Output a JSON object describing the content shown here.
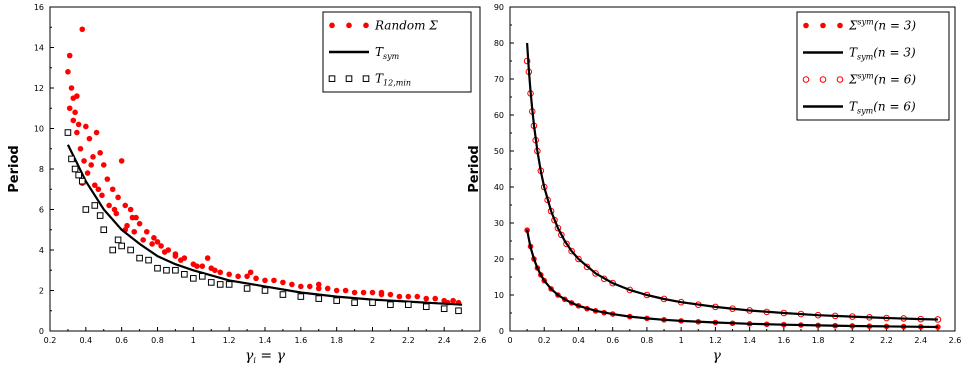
{
  "chart_data": [
    {
      "type": "scatter",
      "ylabel": "Period",
      "xlabel_text": "γ",
      "xlabel_sub": "i",
      "xlabel_tail": " = γ",
      "xlim": [
        0.2,
        2.6
      ],
      "ylim": [
        0,
        16
      ],
      "xticks": [
        "0.2",
        "0.4",
        "0.6",
        "0.8",
        "1",
        "1.2",
        "1.4",
        "1.6",
        "1.8",
        "2",
        "2.2",
        "2.4",
        "2.6"
      ],
      "yticks": [
        "0",
        "2",
        "4",
        "6",
        "8",
        "10",
        "12",
        "14",
        "16"
      ],
      "legend_position": "top-right",
      "colors": {
        "random": "#ff0000",
        "sym": "#000000",
        "t12": "#000000"
      },
      "series": [
        {
          "name": "Random Σ",
          "key": "random",
          "marker": "dot",
          "x": [
            0.3,
            0.31,
            0.32,
            0.33,
            0.34,
            0.35,
            0.36,
            0.38,
            0.4,
            0.42,
            0.44,
            0.46,
            0.48,
            0.5,
            0.52,
            0.55,
            0.58,
            0.6,
            0.62,
            0.65,
            0.68,
            0.7,
            0.74,
            0.78,
            0.82,
            0.86,
            0.9,
            0.95,
            1.0,
            1.05,
            1.1,
            1.15,
            1.2,
            1.3,
            1.4,
            1.5,
            1.6,
            1.7,
            1.8,
            1.9,
            2.0,
            2.1,
            2.2,
            2.3,
            2.4,
            2.48,
            0.31,
            0.33,
            0.35,
            0.37,
            0.39,
            0.41,
            0.45,
            0.49,
            0.53,
            0.57,
            0.63,
            0.67,
            0.72,
            0.77,
            0.84,
            0.93,
            1.02,
            1.12,
            1.25,
            1.35,
            1.45,
            1.55,
            1.65,
            1.75,
            1.85,
            1.95,
            2.05,
            2.15,
            2.25,
            2.35,
            2.45,
            0.38,
            0.56,
            0.62,
            0.8,
            0.43,
            0.47,
            0.66,
            0.9,
            1.08,
            1.32,
            1.7,
            2.05,
            2.42
          ],
          "y": [
            12.8,
            13.6,
            12.0,
            11.5,
            10.8,
            11.6,
            10.2,
            14.9,
            10.1,
            9.5,
            8.6,
            9.8,
            8.8,
            8.2,
            7.5,
            7.0,
            6.6,
            8.4,
            6.2,
            6.0,
            5.6,
            5.3,
            4.9,
            4.6,
            4.2,
            4.0,
            3.8,
            3.6,
            3.3,
            3.2,
            3.1,
            2.9,
            2.8,
            2.7,
            2.5,
            2.4,
            2.2,
            2.1,
            2.0,
            1.9,
            1.9,
            1.8,
            1.7,
            1.6,
            1.5,
            1.4,
            11.0,
            10.4,
            9.8,
            9.0,
            8.4,
            7.8,
            7.2,
            6.7,
            6.2,
            5.8,
            5.2,
            4.9,
            4.5,
            4.3,
            3.9,
            3.5,
            3.2,
            3.0,
            2.7,
            2.6,
            2.5,
            2.3,
            2.2,
            2.1,
            2.0,
            1.9,
            1.8,
            1.7,
            1.7,
            1.6,
            1.5,
            7.3,
            6.0,
            5.0,
            4.4,
            8.2,
            7.0,
            5.6,
            3.7,
            3.6,
            2.9,
            2.3,
            1.9,
            1.4
          ]
        },
        {
          "name": "T",
          "sub": "sym",
          "key": "sym",
          "marker": "line",
          "x": [
            0.3,
            0.35,
            0.4,
            0.45,
            0.5,
            0.6,
            0.7,
            0.8,
            0.9,
            1.0,
            1.2,
            1.4,
            1.6,
            1.8,
            2.0,
            2.2,
            2.4,
            2.5
          ],
          "y": [
            9.2,
            8.3,
            7.4,
            6.7,
            6.0,
            5.0,
            4.3,
            3.7,
            3.3,
            3.0,
            2.5,
            2.2,
            1.9,
            1.7,
            1.55,
            1.45,
            1.35,
            1.3
          ]
        },
        {
          "name": "T",
          "sub": "12,min",
          "key": "t12",
          "marker": "square",
          "x": [
            0.3,
            0.32,
            0.34,
            0.36,
            0.38,
            0.4,
            0.45,
            0.48,
            0.5,
            0.55,
            0.58,
            0.6,
            0.65,
            0.7,
            0.75,
            0.8,
            0.85,
            0.9,
            0.95,
            1.0,
            1.05,
            1.1,
            1.15,
            1.2,
            1.3,
            1.4,
            1.5,
            1.6,
            1.7,
            1.8,
            1.9,
            2.0,
            2.1,
            2.2,
            2.3,
            2.4,
            2.48
          ],
          "y": [
            9.8,
            8.5,
            8.0,
            7.7,
            7.4,
            6.0,
            6.2,
            5.7,
            5.0,
            4.0,
            4.5,
            4.2,
            4.0,
            3.6,
            3.5,
            3.1,
            3.0,
            3.0,
            2.8,
            2.6,
            2.7,
            2.4,
            2.3,
            2.3,
            2.1,
            2.0,
            1.8,
            1.7,
            1.6,
            1.5,
            1.4,
            1.4,
            1.3,
            1.3,
            1.2,
            1.1,
            1.0
          ]
        }
      ]
    },
    {
      "type": "line",
      "ylabel": "Period",
      "xlabel_text": "γ",
      "xlabel_sub": "",
      "xlabel_tail": "",
      "xlim": [
        0,
        2.6
      ],
      "ylim": [
        0,
        90
      ],
      "xticks": [
        "0",
        "0.2",
        "0.4",
        "0.6",
        "0.8",
        "1",
        "1.2",
        "1.4",
        "1.6",
        "1.8",
        "2",
        "2.2",
        "2.4",
        "2.6"
      ],
      "yticks": [
        "0",
        "10",
        "20",
        "30",
        "40",
        "50",
        "60",
        "70",
        "80",
        "90"
      ],
      "legend_position": "top-right",
      "colors": {
        "red": "#ff0000",
        "black": "#000000"
      },
      "series": [
        {
          "name": "Σ",
          "sup": "sym",
          "tail": "(n = 3)",
          "key": "red",
          "marker": "dot",
          "x": [
            0.1,
            0.12,
            0.14,
            0.16,
            0.18,
            0.2,
            0.24,
            0.28,
            0.32,
            0.36,
            0.4,
            0.45,
            0.5,
            0.55,
            0.6,
            0.7,
            0.8,
            0.9,
            1.0,
            1.1,
            1.2,
            1.3,
            1.4,
            1.5,
            1.6,
            1.7,
            1.8,
            1.9,
            2.0,
            2.1,
            2.2,
            2.3,
            2.4,
            2.5
          ],
          "y": [
            28.0,
            23.5,
            20.0,
            17.5,
            15.6,
            14.0,
            11.7,
            10.0,
            8.8,
            7.8,
            7.0,
            6.2,
            5.6,
            5.1,
            4.7,
            4.0,
            3.5,
            3.1,
            2.8,
            2.55,
            2.35,
            2.15,
            2.0,
            1.87,
            1.75,
            1.65,
            1.56,
            1.47,
            1.4,
            1.33,
            1.27,
            1.22,
            1.17,
            1.12
          ]
        },
        {
          "name": "T",
          "sub": "sym",
          "tail": "(n = 3)",
          "key": "black",
          "marker": "line",
          "x": [
            0.1,
            0.12,
            0.14,
            0.16,
            0.18,
            0.2,
            0.24,
            0.28,
            0.32,
            0.36,
            0.4,
            0.5,
            0.6,
            0.7,
            0.8,
            0.9,
            1.0,
            1.2,
            1.4,
            1.6,
            1.8,
            2.0,
            2.2,
            2.4,
            2.5
          ],
          "y": [
            28.0,
            23.3,
            20.0,
            17.5,
            15.6,
            14.0,
            11.7,
            10.0,
            8.8,
            7.8,
            7.0,
            5.6,
            4.7,
            4.0,
            3.5,
            3.1,
            2.8,
            2.35,
            2.0,
            1.75,
            1.56,
            1.4,
            1.27,
            1.17,
            1.12
          ]
        },
        {
          "name": "Σ",
          "sup": "sym",
          "tail": "(n = 6)",
          "key": "red",
          "marker": "circle",
          "x": [
            0.1,
            0.11,
            0.12,
            0.13,
            0.14,
            0.15,
            0.16,
            0.18,
            0.2,
            0.22,
            0.24,
            0.26,
            0.28,
            0.3,
            0.33,
            0.36,
            0.4,
            0.45,
            0.5,
            0.55,
            0.6,
            0.7,
            0.8,
            0.9,
            1.0,
            1.1,
            1.2,
            1.3,
            1.4,
            1.5,
            1.6,
            1.7,
            1.8,
            1.9,
            2.0,
            2.1,
            2.2,
            2.3,
            2.4,
            2.5
          ],
          "y": [
            75.0,
            72.0,
            66.0,
            61.0,
            57.0,
            53.0,
            50.0,
            44.5,
            40.0,
            36.4,
            33.3,
            30.8,
            28.6,
            26.7,
            24.2,
            22.2,
            20.0,
            17.8,
            16.0,
            14.5,
            13.3,
            11.4,
            10.0,
            8.9,
            8.0,
            7.3,
            6.7,
            6.2,
            5.7,
            5.3,
            5.0,
            4.7,
            4.4,
            4.2,
            4.0,
            3.8,
            3.6,
            3.5,
            3.3,
            3.2
          ]
        },
        {
          "name": "T",
          "sub": "sym",
          "tail": "(n = 6)",
          "key": "black",
          "marker": "line",
          "x": [
            0.1,
            0.11,
            0.12,
            0.13,
            0.14,
            0.16,
            0.18,
            0.2,
            0.24,
            0.28,
            0.32,
            0.36,
            0.4,
            0.5,
            0.6,
            0.7,
            0.8,
            0.9,
            1.0,
            1.2,
            1.4,
            1.6,
            1.8,
            2.0,
            2.2,
            2.4,
            2.5
          ],
          "y": [
            80.0,
            72.7,
            66.7,
            61.5,
            57.1,
            50.0,
            44.4,
            40.0,
            33.3,
            28.6,
            25.0,
            22.2,
            20.0,
            16.0,
            13.3,
            11.4,
            10.0,
            8.9,
            8.0,
            6.7,
            5.7,
            5.0,
            4.4,
            4.0,
            3.6,
            3.3,
            3.2
          ]
        }
      ]
    }
  ]
}
